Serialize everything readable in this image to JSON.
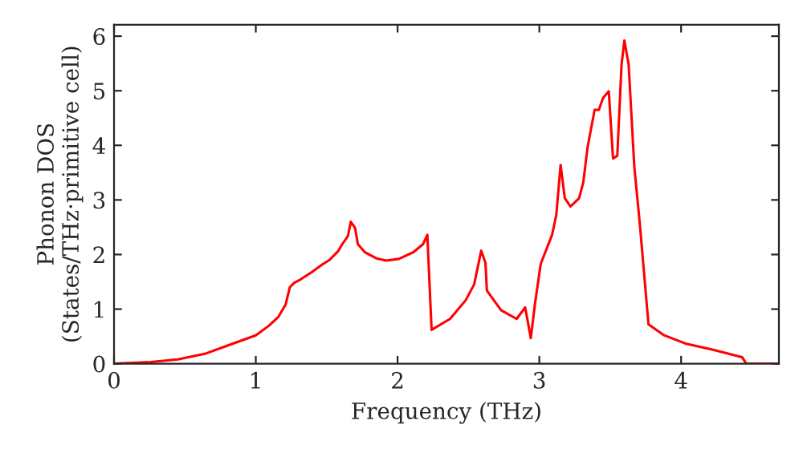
{
  "chart_data": {
    "type": "line",
    "xlabel": "Frequency (THz)",
    "ylabel": "Phonon DOS\n(States/THz·primitive cell)",
    "xlim": [
      0,
      4.69
    ],
    "ylim": [
      0,
      6.21
    ],
    "xticks": [
      0,
      1,
      2,
      3,
      4
    ],
    "yticks": [
      0,
      1,
      2,
      3,
      4,
      5,
      6
    ],
    "grid": false,
    "legend": false,
    "marker": "none",
    "line_style": "solid",
    "series": [
      {
        "color": "#ff0000",
        "x": [
          0,
          0.26,
          0.45,
          0.64,
          0.82,
          1.0,
          1.09,
          1.16,
          1.21,
          1.24,
          1.27,
          1.32,
          1.39,
          1.47,
          1.52,
          1.58,
          1.61,
          1.65,
          1.67,
          1.7,
          1.72,
          1.77,
          1.85,
          1.92,
          2.01,
          2.11,
          2.18,
          2.21,
          2.24,
          2.37,
          2.48,
          2.54,
          2.59,
          2.62,
          2.63,
          2.73,
          2.84,
          2.9,
          2.94,
          2.97,
          3.01,
          3.09,
          3.12,
          3.15,
          3.18,
          3.22,
          3.28,
          3.31,
          3.34,
          3.39,
          3.42,
          3.45,
          3.49,
          3.52,
          3.55,
          3.58,
          3.6,
          3.63,
          3.67,
          3.71,
          3.77,
          3.88,
          4.03,
          4.22,
          4.43,
          4.46,
          4.69
        ],
        "values": [
          0,
          0.03,
          0.08,
          0.18,
          0.35,
          0.52,
          0.69,
          0.86,
          1.08,
          1.4,
          1.48,
          1.55,
          1.67,
          1.82,
          1.9,
          2.06,
          2.19,
          2.34,
          2.6,
          2.49,
          2.19,
          2.04,
          1.93,
          1.89,
          1.92,
          2.04,
          2.19,
          2.36,
          0.62,
          0.82,
          1.16,
          1.45,
          2.07,
          1.85,
          1.34,
          0.98,
          0.82,
          1.03,
          0.47,
          1.11,
          1.83,
          2.36,
          2.73,
          3.64,
          3.03,
          2.88,
          3.03,
          3.32,
          3.96,
          4.65,
          4.65,
          4.87,
          4.99,
          3.76,
          3.81,
          5.48,
          5.92,
          5.48,
          3.61,
          2.53,
          0.72,
          0.52,
          0.37,
          0.26,
          0.12,
          0,
          0
        ]
      }
    ]
  }
}
